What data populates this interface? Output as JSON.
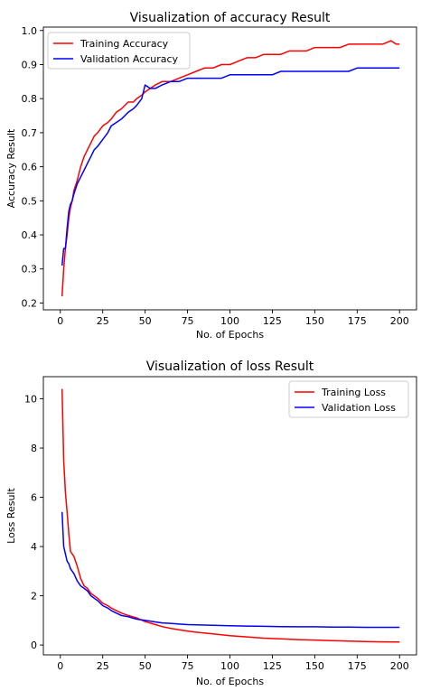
{
  "chart_data": [
    {
      "type": "line",
      "title": "Visualization of accuracy Result",
      "xlabel": "No. of Epochs",
      "ylabel": "Accuracy Result",
      "xlim": [
        -10,
        210
      ],
      "ylim": [
        0.18,
        1.01
      ],
      "xticks": [
        0,
        25,
        50,
        75,
        100,
        125,
        150,
        175,
        200
      ],
      "yticks": [
        0.2,
        0.3,
        0.4,
        0.5,
        0.6,
        0.7,
        0.8,
        0.9,
        1.0
      ],
      "ytick_labels": [
        "0.2",
        "0.3",
        "0.4",
        "0.5",
        "0.6",
        "0.7",
        "0.8",
        "0.9",
        "1.0"
      ],
      "grid": false,
      "legend": "upper left",
      "series": [
        {
          "name": "Training Accuracy",
          "color": "#ff0000",
          "x": [
            1,
            2,
            3,
            4,
            5,
            6,
            7,
            8,
            10,
            12,
            14,
            16,
            18,
            20,
            22,
            25,
            28,
            30,
            33,
            36,
            40,
            43,
            45,
            48,
            50,
            53,
            56,
            60,
            65,
            70,
            75,
            80,
            85,
            90,
            95,
            100,
            105,
            110,
            115,
            120,
            125,
            130,
            135,
            140,
            145,
            150,
            155,
            160,
            165,
            170,
            175,
            180,
            185,
            190,
            195,
            198,
            200
          ],
          "y": [
            0.22,
            0.3,
            0.36,
            0.4,
            0.45,
            0.48,
            0.5,
            0.53,
            0.56,
            0.6,
            0.63,
            0.65,
            0.67,
            0.69,
            0.7,
            0.72,
            0.73,
            0.74,
            0.76,
            0.77,
            0.79,
            0.79,
            0.8,
            0.81,
            0.82,
            0.83,
            0.84,
            0.85,
            0.85,
            0.86,
            0.87,
            0.88,
            0.89,
            0.89,
            0.9,
            0.9,
            0.91,
            0.92,
            0.92,
            0.93,
            0.93,
            0.93,
            0.94,
            0.94,
            0.94,
            0.95,
            0.95,
            0.95,
            0.95,
            0.96,
            0.96,
            0.96,
            0.96,
            0.96,
            0.97,
            0.96,
            0.96
          ]
        },
        {
          "name": "Validation Accuracy",
          "color": "#0000ff",
          "x": [
            1,
            2,
            3,
            4,
            5,
            6,
            7,
            8,
            10,
            12,
            14,
            16,
            18,
            20,
            22,
            25,
            28,
            30,
            33,
            36,
            40,
            43,
            45,
            48,
            50,
            53,
            56,
            60,
            65,
            70,
            75,
            80,
            85,
            90,
            95,
            100,
            105,
            110,
            115,
            120,
            125,
            130,
            135,
            140,
            145,
            150,
            155,
            160,
            165,
            170,
            175,
            180,
            185,
            190,
            195,
            198,
            200
          ],
          "y": [
            0.31,
            0.36,
            0.36,
            0.42,
            0.47,
            0.49,
            0.5,
            0.52,
            0.55,
            0.57,
            0.59,
            0.61,
            0.63,
            0.65,
            0.66,
            0.68,
            0.7,
            0.72,
            0.73,
            0.74,
            0.76,
            0.77,
            0.78,
            0.8,
            0.84,
            0.83,
            0.83,
            0.84,
            0.85,
            0.85,
            0.86,
            0.86,
            0.86,
            0.86,
            0.86,
            0.87,
            0.87,
            0.87,
            0.87,
            0.87,
            0.87,
            0.88,
            0.88,
            0.88,
            0.88,
            0.88,
            0.88,
            0.88,
            0.88,
            0.88,
            0.89,
            0.89,
            0.89,
            0.89,
            0.89,
            0.89,
            0.89
          ]
        }
      ]
    },
    {
      "type": "line",
      "title": "Visualization of loss Result",
      "xlabel": "No. of Epochs",
      "ylabel": "Loss Result",
      "xlim": [
        -10,
        210
      ],
      "ylim": [
        -0.4,
        10.9
      ],
      "xticks": [
        0,
        25,
        50,
        75,
        100,
        125,
        150,
        175,
        200
      ],
      "yticks": [
        0,
        2,
        4,
        6,
        8,
        10
      ],
      "ytick_labels": [
        "0",
        "2",
        "4",
        "6",
        "8",
        "10"
      ],
      "grid": false,
      "legend": "upper right",
      "series": [
        {
          "name": "Training Loss",
          "color": "#ff0000",
          "x": [
            1,
            2,
            3,
            4,
            5,
            6,
            7,
            8,
            10,
            12,
            14,
            16,
            18,
            20,
            22,
            25,
            28,
            30,
            33,
            36,
            40,
            45,
            50,
            55,
            60,
            65,
            70,
            75,
            80,
            90,
            100,
            110,
            120,
            130,
            140,
            150,
            160,
            170,
            180,
            190,
            200
          ],
          "y": [
            10.4,
            7.5,
            6.2,
            5.4,
            4.5,
            3.8,
            3.7,
            3.6,
            3.2,
            2.7,
            2.4,
            2.3,
            2.1,
            2.0,
            1.9,
            1.7,
            1.6,
            1.5,
            1.4,
            1.3,
            1.2,
            1.1,
            0.95,
            0.85,
            0.75,
            0.68,
            0.62,
            0.57,
            0.52,
            0.45,
            0.38,
            0.33,
            0.28,
            0.25,
            0.22,
            0.2,
            0.18,
            0.16,
            0.14,
            0.13,
            0.12
          ]
        },
        {
          "name": "Validation Loss",
          "color": "#0000ff",
          "x": [
            1,
            2,
            3,
            4,
            5,
            6,
            7,
            8,
            10,
            12,
            14,
            16,
            18,
            20,
            22,
            25,
            28,
            30,
            33,
            36,
            40,
            45,
            50,
            55,
            60,
            65,
            70,
            75,
            80,
            90,
            100,
            110,
            120,
            130,
            140,
            150,
            160,
            170,
            180,
            190,
            200
          ],
          "y": [
            5.4,
            4.0,
            3.7,
            3.4,
            3.3,
            3.1,
            3.0,
            2.9,
            2.6,
            2.4,
            2.3,
            2.2,
            2.0,
            1.9,
            1.8,
            1.6,
            1.5,
            1.4,
            1.3,
            1.2,
            1.15,
            1.05,
            1.0,
            0.95,
            0.9,
            0.88,
            0.85,
            0.83,
            0.82,
            0.8,
            0.78,
            0.77,
            0.76,
            0.75,
            0.74,
            0.74,
            0.73,
            0.73,
            0.72,
            0.72,
            0.72
          ]
        }
      ]
    }
  ]
}
